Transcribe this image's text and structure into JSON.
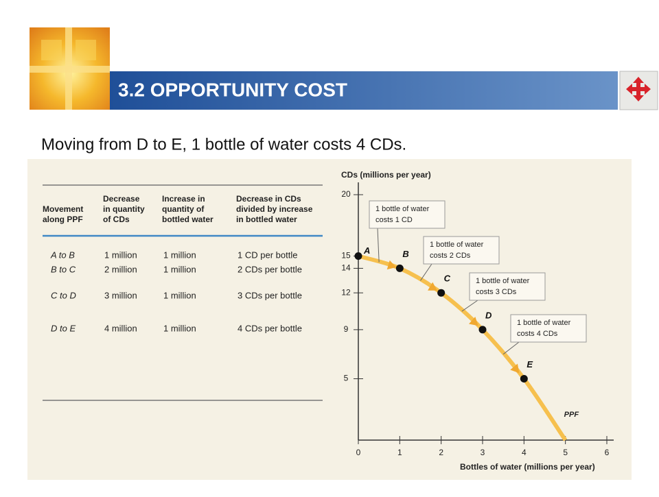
{
  "header": {
    "title": "3.2 OPPORTUNITY COST"
  },
  "subtitle": "Moving from D to E, 1 bottle of water costs 4 CDs.",
  "table": {
    "columns": [
      [
        "Movement",
        "along PPF"
      ],
      [
        "Decrease",
        "in quantity",
        "of CDs"
      ],
      [
        "Increase in",
        "quantity of",
        "bottled water"
      ],
      [
        "Decrease in CDs",
        "divided by increase",
        "in bottled water"
      ]
    ],
    "rows": [
      [
        "A to B",
        "1 million",
        "1 million",
        "1 CD per bottle"
      ],
      [
        "B to C",
        "2 million",
        "1 million",
        "2 CDs per bottle"
      ],
      [
        "C to D",
        "3 million",
        "1 million",
        "3 CDs per bottle"
      ],
      [
        "D to E",
        "4 million",
        "1 million",
        "4 CDs per bottle"
      ]
    ]
  },
  "chart_data": {
    "type": "line",
    "y_label": "CDs (millions per year)",
    "x_label": "Bottles of water (millions per year)",
    "x": [
      0,
      1,
      2,
      3,
      4,
      5
    ],
    "series": [
      {
        "name": "PPF",
        "color": "#f6c04e",
        "values": [
          15,
          14,
          12,
          9,
          5,
          0
        ],
        "point_labels": [
          "A",
          "B",
          "C",
          "D",
          "E",
          null
        ]
      }
    ],
    "xlim": [
      0,
      6
    ],
    "xticks": [
      0,
      1,
      2,
      3,
      4,
      5,
      6
    ],
    "ylim": [
      0,
      20
    ],
    "yticks": [
      5,
      9,
      12,
      14,
      15,
      20
    ],
    "annotations": [
      [
        "1 bottle of water",
        "costs 1 CD"
      ],
      [
        "1 bottle of water",
        "costs 2 CDs"
      ],
      [
        "1 bottle of water",
        "costs 3 CDs"
      ],
      [
        "1 bottle of water",
        "costs 4 CDs"
      ]
    ]
  }
}
